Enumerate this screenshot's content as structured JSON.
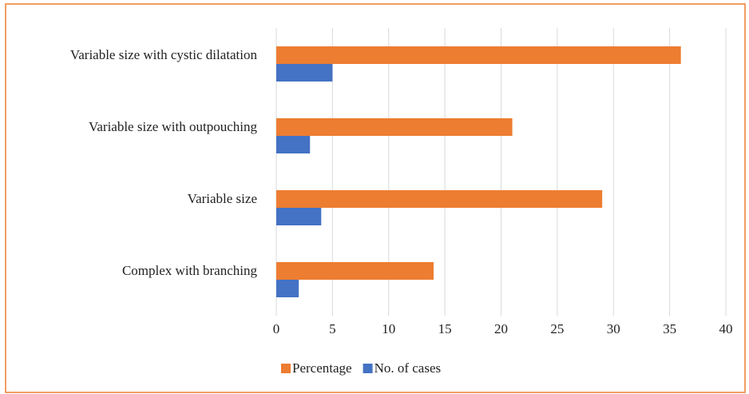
{
  "chart_data": {
    "type": "bar",
    "orientation": "horizontal",
    "categories": [
      "Variable size with cystic dilatation",
      "Variable size with outpouching",
      "Variable size",
      "Complex with branching"
    ],
    "series": [
      {
        "name": "Percentage",
        "color": "#ed7d31",
        "values": [
          36,
          21,
          29,
          14
        ]
      },
      {
        "name": "No. of cases",
        "color": "#4472c4",
        "values": [
          5,
          3,
          4,
          2
        ]
      }
    ],
    "xlim": [
      0,
      40
    ],
    "xticks": [
      0,
      5,
      10,
      15,
      20,
      25,
      30,
      35,
      40
    ],
    "grid": true,
    "legend": "bottom"
  }
}
